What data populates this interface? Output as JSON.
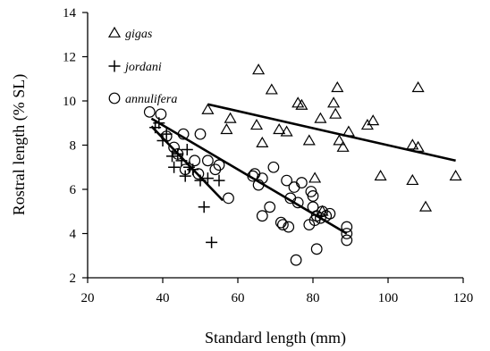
{
  "chart_data": {
    "type": "scatter",
    "title": "",
    "xlabel": "Standard length (mm)",
    "ylabel": "Rostral length (% SL)",
    "xlim": [
      20,
      120
    ],
    "ylim": [
      2,
      14
    ],
    "xticks": [
      "20",
      "40",
      "60",
      "80",
      "100",
      "120"
    ],
    "yticks": [
      "2",
      "4",
      "6",
      "8",
      "10",
      "12",
      "14"
    ],
    "grid": false,
    "legend_position": "top-left",
    "series": [
      {
        "name": "gigas",
        "marker": "triangle",
        "points": [
          [
            52,
            9.6
          ],
          [
            57,
            8.7
          ],
          [
            58,
            9.2
          ],
          [
            65,
            8.9
          ],
          [
            65.5,
            11.4
          ],
          [
            66.5,
            8.1
          ],
          [
            69,
            10.5
          ],
          [
            71,
            8.7
          ],
          [
            73,
            8.6
          ],
          [
            76,
            9.9
          ],
          [
            77,
            9.8
          ],
          [
            79,
            8.2
          ],
          [
            80.5,
            6.5
          ],
          [
            82,
            9.2
          ],
          [
            82.5,
            5.0
          ],
          [
            85.5,
            9.9
          ],
          [
            86,
            9.4
          ],
          [
            86.5,
            10.6
          ],
          [
            87,
            8.2
          ],
          [
            88,
            7.9
          ],
          [
            89.5,
            8.6
          ],
          [
            94.5,
            8.9
          ],
          [
            96,
            9.1
          ],
          [
            98,
            6.6
          ],
          [
            106.5,
            8.0
          ],
          [
            106.5,
            6.4
          ],
          [
            108,
            10.6
          ],
          [
            108,
            7.9
          ],
          [
            110,
            5.2
          ],
          [
            118,
            6.6
          ]
        ]
      },
      {
        "name": "jordani",
        "marker": "plus",
        "points": [
          [
            38,
            8.8
          ],
          [
            39,
            9.0
          ],
          [
            40,
            8.2
          ],
          [
            41,
            8.5
          ],
          [
            42.5,
            7.5
          ],
          [
            43,
            7.0
          ],
          [
            44,
            7.6
          ],
          [
            45,
            7.3
          ],
          [
            46,
            6.6
          ],
          [
            46.5,
            7.8
          ],
          [
            47,
            7.0
          ],
          [
            48,
            6.9
          ],
          [
            50,
            6.4
          ],
          [
            51,
            5.2
          ],
          [
            52,
            6.5
          ],
          [
            53,
            3.6
          ],
          [
            55,
            6.4
          ]
        ]
      },
      {
        "name": "annulifera",
        "marker": "circle",
        "points": [
          [
            36.5,
            9.5
          ],
          [
            39.5,
            9.4
          ],
          [
            41,
            8.4
          ],
          [
            43,
            7.9
          ],
          [
            44,
            7.6
          ],
          [
            45.5,
            8.5
          ],
          [
            46,
            6.9
          ],
          [
            48.5,
            7.3
          ],
          [
            49.5,
            6.7
          ],
          [
            50,
            8.5
          ],
          [
            52,
            7.3
          ],
          [
            54,
            6.9
          ],
          [
            55,
            7.1
          ],
          [
            57.5,
            5.6
          ],
          [
            64,
            6.6
          ],
          [
            64.5,
            6.7
          ],
          [
            65.5,
            6.2
          ],
          [
            66.5,
            6.5
          ],
          [
            66.5,
            4.8
          ],
          [
            68.5,
            5.2
          ],
          [
            69.5,
            7.0
          ],
          [
            71.5,
            4.5
          ],
          [
            72,
            4.4
          ],
          [
            73,
            6.4
          ],
          [
            73.5,
            4.3
          ],
          [
            74,
            5.6
          ],
          [
            75,
            6.1
          ],
          [
            75.5,
            2.8
          ],
          [
            76,
            5.4
          ],
          [
            77,
            6.3
          ],
          [
            79,
            4.4
          ],
          [
            79.5,
            5.9
          ],
          [
            80,
            5.7
          ],
          [
            80,
            5.2
          ],
          [
            80.5,
            4.6
          ],
          [
            81,
            3.3
          ],
          [
            81,
            4.8
          ],
          [
            82,
            4.7
          ],
          [
            82.5,
            5.0
          ],
          [
            83.5,
            4.8
          ],
          [
            84.5,
            4.9
          ],
          [
            89,
            4.3
          ],
          [
            89,
            4.0
          ],
          [
            89,
            3.7
          ]
        ]
      }
    ],
    "trendlines": [
      {
        "series": "gigas",
        "from": [
          52,
          9.85
        ],
        "to": [
          118,
          7.3
        ]
      },
      {
        "series": "jordani",
        "from": [
          37,
          8.85
        ],
        "to": [
          56,
          5.5
        ]
      },
      {
        "series": "annulifera",
        "from": [
          37,
          9.2
        ],
        "to": [
          89,
          4.0
        ]
      }
    ]
  }
}
